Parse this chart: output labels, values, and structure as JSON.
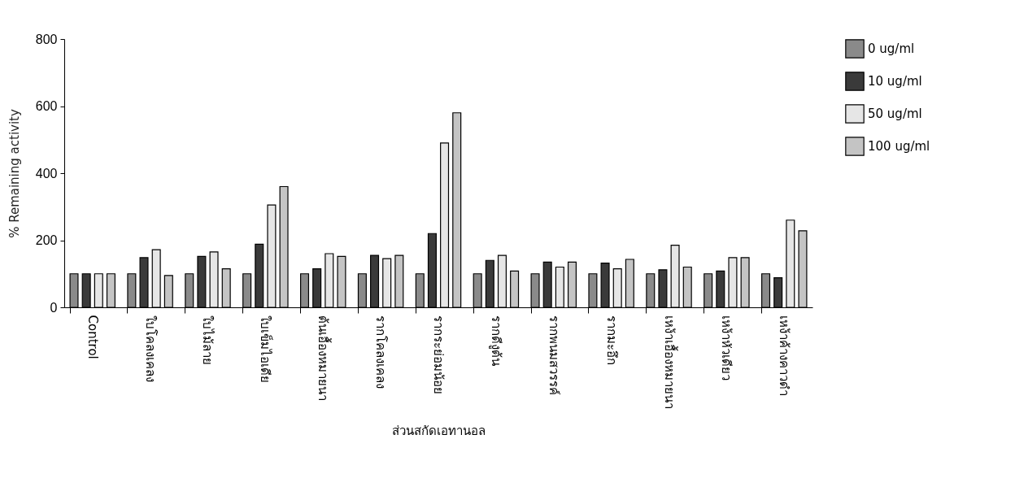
{
  "chart_data": {
    "type": "bar",
    "xlabel": "ส่วนสกัดเอทานอล",
    "ylabel": "% Remaining activity",
    "categories": [
      "Control",
      "ใบโคลงเคลง",
      "ใบไม้ลาย",
      "ใบเข็มไอเดีย",
      "ต้นเอื้องหมายนา",
      "รากโคลงเคลง",
      "รากระย่อมน้อย",
      "รากดีงูต้น",
      "รากพนมสวรรค์",
      "รากมะอึก",
      "เหง้าเอื้องหมายนา",
      "เหง้าหัวเดียว",
      "เหง้าค้างคาวดำ"
    ],
    "series": [
      {
        "name": "0 ug/ml",
        "color": "#8a8a8a",
        "values": [
          100,
          100,
          100,
          100,
          100,
          100,
          100,
          100,
          100,
          100,
          100,
          100,
          100
        ]
      },
      {
        "name": "10 ug/ml",
        "color": "#3a3a3a",
        "values": [
          100,
          148,
          152,
          188,
          115,
          155,
          220,
          140,
          135,
          132,
          112,
          108,
          88
        ]
      },
      {
        "name": "50 ug/ml",
        "color": "#e6e6e6",
        "values": [
          100,
          172,
          165,
          305,
          160,
          145,
          490,
          155,
          120,
          115,
          185,
          148,
          260
        ]
      },
      {
        "name": "100 ug/ml",
        "color": "#c4c4c4",
        "values": [
          100,
          95,
          115,
          360,
          152,
          155,
          580,
          108,
          135,
          143,
          120,
          148,
          228
        ]
      }
    ],
    "ylim": [
      0,
      800
    ],
    "yticks": [
      0,
      200,
      400,
      600,
      800
    ],
    "grid": false,
    "legend": "top right"
  }
}
